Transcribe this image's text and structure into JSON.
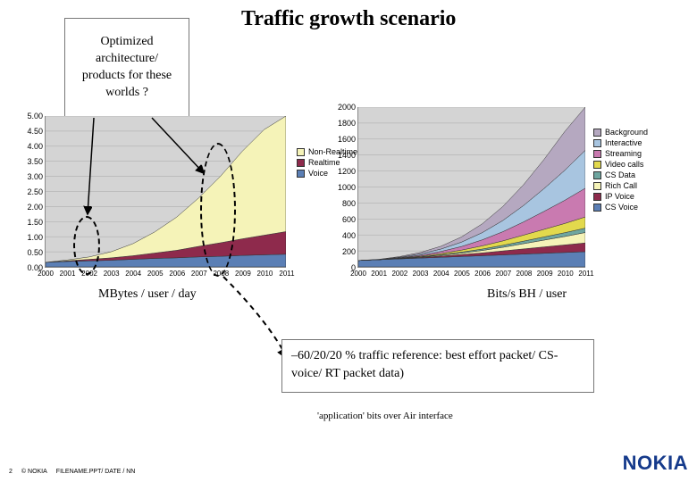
{
  "title": "Traffic growth scenario",
  "callout": "Optimized\narchitecture/\nproducts for these\nworlds ?",
  "chartLeft": {
    "type": "stacked-area",
    "subtitle": "MBytes / user / day",
    "xCategories": [
      "2000",
      "2001",
      "2002",
      "2003",
      "2004",
      "2005",
      "2006",
      "2007",
      "2008",
      "2009",
      "2010",
      "2011"
    ],
    "yTicks": [
      "0.00",
      "0.50",
      "1.00",
      "1.50",
      "2.00",
      "2.50",
      "3.00",
      "3.50",
      "4.00",
      "4.50",
      "5.00"
    ],
    "ylim": [
      0,
      5
    ],
    "series": [
      {
        "name": "Voice",
        "color": "#5b7fb5",
        "values": [
          0.15,
          0.18,
          0.2,
          0.22,
          0.25,
          0.28,
          0.3,
          0.33,
          0.35,
          0.38,
          0.4,
          0.42
        ]
      },
      {
        "name": "Realtime",
        "color": "#8e2a4c",
        "values": [
          0.0,
          0.02,
          0.05,
          0.08,
          0.12,
          0.18,
          0.25,
          0.35,
          0.45,
          0.55,
          0.65,
          0.75
        ]
      },
      {
        "name": "Non-Realtime",
        "color": "#f5f3b8",
        "values": [
          0.0,
          0.03,
          0.08,
          0.2,
          0.4,
          0.7,
          1.1,
          1.6,
          2.2,
          2.9,
          3.5,
          3.83
        ]
      }
    ],
    "legend": [
      "Non-Realtime",
      "Realtime",
      "Voice"
    ],
    "legendColors": [
      "#f5f3b8",
      "#8e2a4c",
      "#5b7fb5"
    ],
    "background": "#d4d4d4",
    "gridColor": "#888888",
    "tickFontSize": 9
  },
  "chartRight": {
    "type": "stacked-area",
    "subtitle": "Bits/s BH / user",
    "xCategories": [
      "2000",
      "2001",
      "2002",
      "2003",
      "2004",
      "2005",
      "2006",
      "2007",
      "2008",
      "2009",
      "2010",
      "2011"
    ],
    "yTicks": [
      "0",
      "200",
      "400",
      "600",
      "800",
      "1000",
      "1200",
      "1400",
      "1600",
      "1800",
      "2000"
    ],
    "ylim": [
      0,
      2000
    ],
    "series": [
      {
        "name": "CS Voice",
        "color": "#5b7fb5",
        "values": [
          80,
          90,
          100,
          110,
          120,
          130,
          140,
          150,
          160,
          170,
          180,
          190
        ]
      },
      {
        "name": "IP Voice",
        "color": "#8e2a4c",
        "values": [
          0,
          0,
          3,
          8,
          15,
          25,
          35,
          50,
          65,
          80,
          95,
          110
        ]
      },
      {
        "name": "Rich Call",
        "color": "#f5f3b8",
        "values": [
          0,
          0,
          2,
          5,
          10,
          18,
          30,
          45,
          65,
          85,
          105,
          130
        ]
      },
      {
        "name": "CS Data",
        "color": "#6ea6a0",
        "values": [
          0,
          0,
          2,
          4,
          8,
          12,
          18,
          25,
          32,
          40,
          48,
          55
        ]
      },
      {
        "name": "Video calls",
        "color": "#e2d94d",
        "values": [
          0,
          0,
          3,
          8,
          15,
          25,
          40,
          55,
          75,
          95,
          115,
          140
        ]
      },
      {
        "name": "Streaming",
        "color": "#c97ab0",
        "values": [
          0,
          0,
          5,
          12,
          25,
          45,
          75,
          115,
          165,
          225,
          290,
          360
        ]
      },
      {
        "name": "Interactive",
        "color": "#a8c5e0",
        "values": [
          0,
          2,
          6,
          15,
          30,
          55,
          90,
          140,
          205,
          285,
          375,
          475
        ]
      },
      {
        "name": "Background",
        "color": "#b5a8c0",
        "values": [
          0,
          3,
          8,
          18,
          35,
          65,
          110,
          175,
          260,
          365,
          485,
          540
        ]
      }
    ],
    "legend": [
      "Background",
      "Interactive",
      "Streaming",
      "Video calls",
      "CS Data",
      "Rich Call",
      "IP Voice",
      "CS Voice"
    ],
    "legendColors": [
      "#b5a8c0",
      "#a8c5e0",
      "#c97ab0",
      "#e2d94d",
      "#6ea6a0",
      "#f5f3b8",
      "#8e2a4c",
      "#5b7fb5"
    ],
    "background": "#d4d4d4",
    "gridColor": "#888888",
    "tickFontSize": 9
  },
  "refBox": "–60/20/20 % traffic reference: best effort packet/ CS-voice/ RT packet data)",
  "airNote": "'application' bits over Air interface",
  "footer": {
    "page": "2",
    "copy": "© NOKIA",
    "file": "FILENAME.PPT/ DATE / NN"
  },
  "logo": "NOKIA",
  "colors": {
    "logo": "#153a8b"
  }
}
